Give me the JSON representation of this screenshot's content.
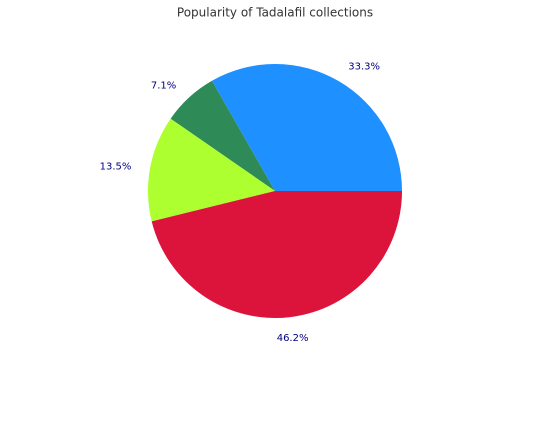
{
  "chart_data": {
    "type": "pie",
    "title": "Popularity of Tadalafil collections",
    "values": [
      33.3,
      7.1,
      13.5,
      46.2
    ],
    "value_labels": [
      "33.3%",
      "7.1%",
      "13.5%",
      "46.2%"
    ],
    "colors": [
      "#1e90ff",
      "#2e8b57",
      "#adff2f",
      "#dc143c"
    ]
  }
}
